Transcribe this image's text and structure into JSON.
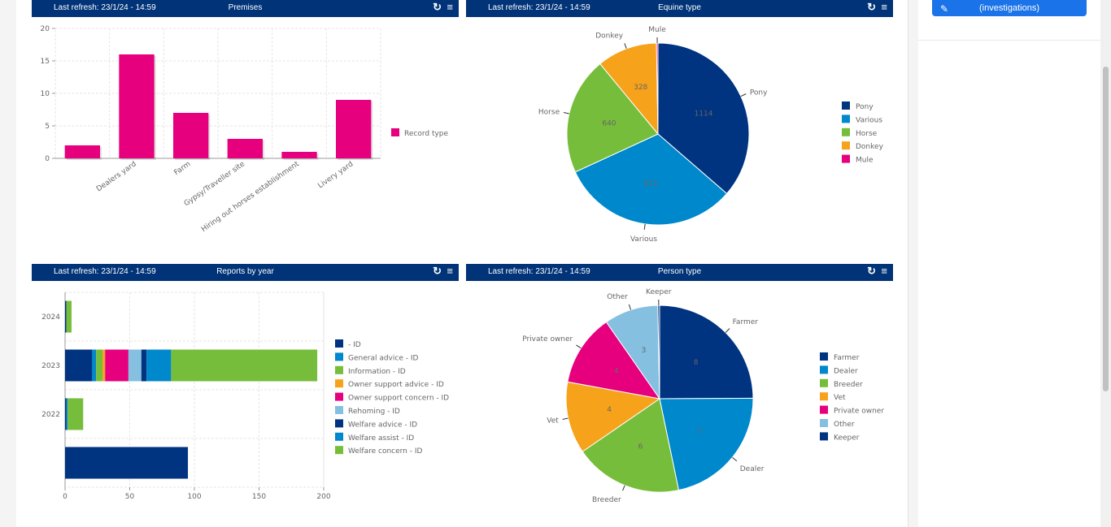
{
  "panels": [
    {
      "refresh": "Last refresh: 23/1/24 - 14:59",
      "title": "Premises"
    },
    {
      "refresh": "Last refresh: 23/1/24 - 14:59",
      "title": "Equine type"
    },
    {
      "refresh": "Last refresh: 23/1/24 - 14:59",
      "title": "Reports by year"
    },
    {
      "refresh": "Last refresh: 23/1/24 - 14:59",
      "title": "Person type"
    }
  ],
  "icons": {
    "reload": "reload-icon",
    "menu": "menu-icon",
    "pen": "pen-icon"
  },
  "sidebar": {
    "button_label": "(investigations)"
  },
  "colors": {
    "header": "#003377",
    "pink": "#e6007e",
    "navy": "#003380",
    "blue": "#0088cc",
    "green": "#76bd3b",
    "orange": "#f7a21b",
    "lightblue": "#85c0e0",
    "accent": "#1a73e8"
  },
  "chart_data": [
    {
      "type": "bar",
      "categories": [
        "",
        "Dealers yard",
        "Farm",
        "Gypsy/Traveller site",
        "Hiring out horses establishment",
        "Livery yard"
      ],
      "series": [
        {
          "name": "Record type",
          "values": [
            2,
            16,
            7,
            3,
            1,
            9
          ],
          "color": "#e6007e"
        }
      ],
      "title": "",
      "xlabel": "",
      "ylabel": "",
      "ylim": [
        0,
        20
      ],
      "yticks": [
        0,
        5,
        10,
        15,
        20
      ],
      "grid": true,
      "legend": "right"
    },
    {
      "type": "pie",
      "labels": [
        "Pony",
        "Various",
        "Horse",
        "Donkey",
        "Mule"
      ],
      "values": [
        1114,
        972,
        640,
        328,
        8
      ],
      "data_labels": [
        "1114",
        "972",
        "640",
        "328",
        ""
      ],
      "colors": [
        "#003380",
        "#0088cc",
        "#76bd3b",
        "#f7a21b",
        "#e6007e"
      ],
      "legend": "right"
    },
    {
      "type": "bar",
      "orientation": "horizontal",
      "stacked": true,
      "categories": [
        "2024",
        "2023",
        "2022",
        ""
      ],
      "series": [
        {
          "name": " - ID",
          "values": [
            1,
            21,
            1,
            95
          ],
          "color": "#003380"
        },
        {
          "name": "General advice - ID",
          "values": [
            0,
            3,
            1,
            0
          ],
          "color": "#0088cc"
        },
        {
          "name": "Information - ID",
          "values": [
            0,
            5,
            0,
            0
          ],
          "color": "#76bd3b"
        },
        {
          "name": "Owner support advice - ID",
          "values": [
            0,
            2,
            0,
            0
          ],
          "color": "#f7a21b"
        },
        {
          "name": "Owner support concern - ID",
          "values": [
            0,
            18,
            0,
            0
          ],
          "color": "#e6007e"
        },
        {
          "name": "Rehoming - ID",
          "values": [
            0,
            10,
            0,
            0
          ],
          "color": "#85c0e0"
        },
        {
          "name": "Welfare advice - ID",
          "values": [
            0,
            4,
            0,
            0
          ],
          "color": "#003380"
        },
        {
          "name": "Welfare assist - ID",
          "values": [
            0,
            19,
            0,
            0
          ],
          "color": "#0088cc"
        },
        {
          "name": "Welfare concern - ID",
          "values": [
            4,
            113,
            12,
            0
          ],
          "color": "#76bd3b"
        }
      ],
      "xlim": [
        0,
        200
      ],
      "xticks": [
        0,
        50,
        100,
        150,
        200
      ],
      "grid": true,
      "legend": "right"
    },
    {
      "type": "pie",
      "labels": [
        "Farmer",
        "Dealer",
        "Breeder",
        "Vet",
        "Private owner",
        "Other",
        "Keeper"
      ],
      "values": [
        8,
        7,
        6,
        4,
        4,
        3,
        0.1
      ],
      "data_labels": [
        "8",
        "7",
        "6",
        "4",
        "4",
        "3",
        ""
      ],
      "colors": [
        "#003380",
        "#0088cc",
        "#76bd3b",
        "#f7a21b",
        "#e6007e",
        "#85c0e0",
        "#003380"
      ],
      "legend": "right"
    }
  ]
}
